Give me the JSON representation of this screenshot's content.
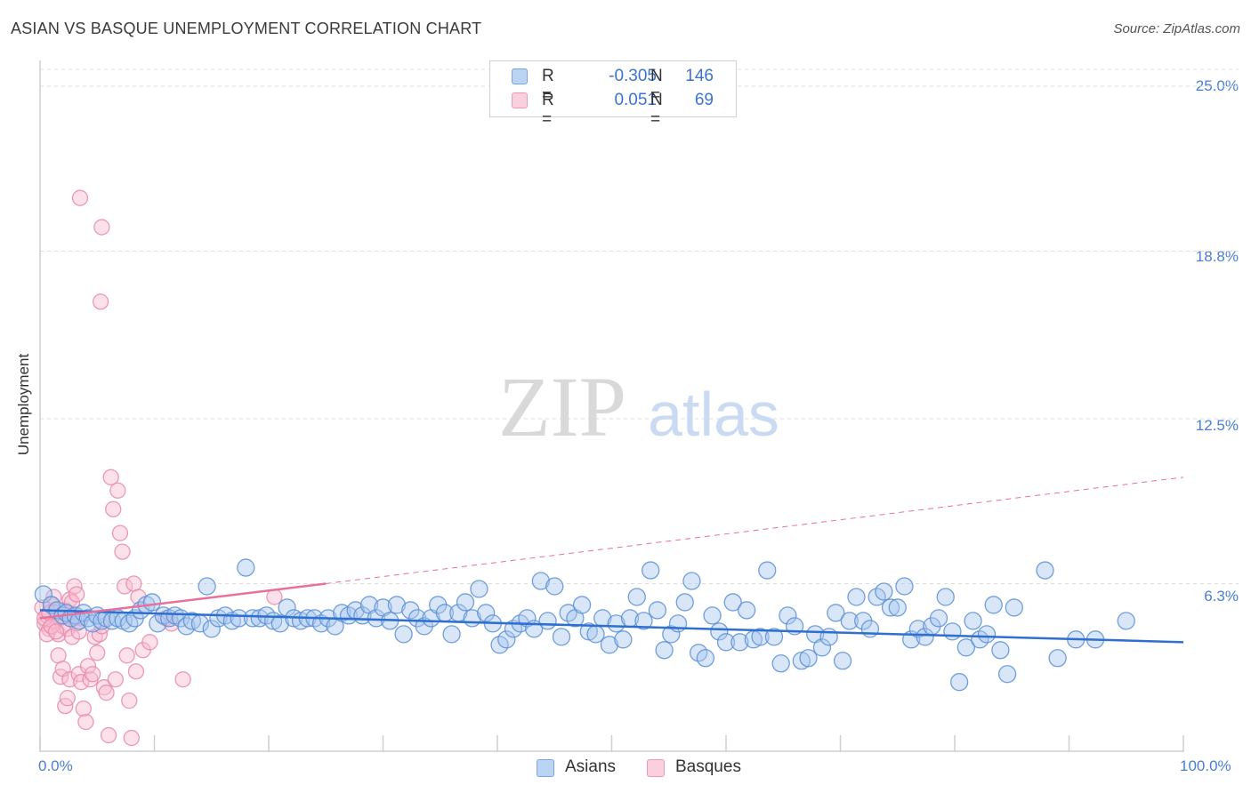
{
  "title": "ASIAN VS BASQUE UNEMPLOYMENT CORRELATION CHART",
  "source": "Source: ZipAtlas.com",
  "watermark": {
    "zip": "ZIP",
    "atlas": "atlas"
  },
  "legend": [
    {
      "name": "Asians",
      "r_label": "R =",
      "r_value": "-0.305",
      "n_label": "N =",
      "n_value": "146",
      "fill": "#a8c8f0",
      "stroke": "#5b8fd6"
    },
    {
      "name": "Basques",
      "r_label": "R =",
      "r_value": "0.051",
      "n_label": "N =",
      "n_value": "69",
      "fill": "#f8bcd0",
      "stroke": "#e888aa"
    }
  ],
  "chart_data": {
    "type": "scatter",
    "title": "ASIAN VS BASQUE UNEMPLOYMENT CORRELATION CHART",
    "xlabel": "",
    "ylabel": "Unemployment",
    "xlim": [
      0,
      100
    ],
    "ylim": [
      0,
      25.8
    ],
    "x_tick_labels": [
      "0.0%",
      "100.0%"
    ],
    "y_ticks": [
      6.3,
      12.5,
      18.8,
      25.0
    ],
    "y_tick_labels": [
      "6.3%",
      "12.5%",
      "18.8%",
      "25.0%"
    ],
    "grid": true,
    "series": [
      {
        "name": "Asians",
        "color": "#5b8fd6",
        "trend": {
          "x": [
            0,
            100
          ],
          "y": [
            5.3,
            4.1
          ],
          "style": "solid",
          "color": "#2f6fd0"
        },
        "points": [
          [
            0.3,
            5.9
          ],
          [
            1.0,
            5.5
          ],
          [
            1.5,
            5.3
          ],
          [
            2.0,
            5.1
          ],
          [
            2.3,
            5.2
          ],
          [
            2.7,
            5.0
          ],
          [
            3.1,
            5.1
          ],
          [
            3.4,
            4.9
          ],
          [
            3.8,
            5.2
          ],
          [
            4.2,
            5.0
          ],
          [
            4.6,
            4.8
          ],
          [
            5.0,
            5.1
          ],
          [
            5.4,
            4.9
          ],
          [
            5.8,
            5.0
          ],
          [
            6.3,
            4.9
          ],
          [
            6.8,
            5.0
          ],
          [
            7.3,
            4.9
          ],
          [
            7.8,
            4.8
          ],
          [
            8.3,
            5.0
          ],
          [
            8.8,
            5.3
          ],
          [
            9.3,
            5.5
          ],
          [
            9.8,
            5.6
          ],
          [
            10.3,
            4.8
          ],
          [
            10.8,
            5.1
          ],
          [
            11.3,
            5.0
          ],
          [
            11.8,
            5.1
          ],
          [
            12.3,
            5.0
          ],
          [
            12.8,
            4.7
          ],
          [
            13.3,
            4.9
          ],
          [
            14.0,
            4.8
          ],
          [
            14.6,
            6.2
          ],
          [
            15.0,
            4.6
          ],
          [
            15.6,
            5.0
          ],
          [
            16.2,
            5.1
          ],
          [
            16.8,
            4.9
          ],
          [
            17.4,
            5.0
          ],
          [
            18.0,
            6.9
          ],
          [
            18.6,
            5.0
          ],
          [
            19.2,
            5.0
          ],
          [
            19.8,
            5.1
          ],
          [
            20.4,
            4.9
          ],
          [
            21.0,
            4.8
          ],
          [
            21.6,
            5.4
          ],
          [
            22.2,
            5.0
          ],
          [
            22.8,
            4.9
          ],
          [
            23.4,
            5.0
          ],
          [
            24.0,
            5.0
          ],
          [
            24.6,
            4.8
          ],
          [
            25.2,
            5.0
          ],
          [
            25.8,
            4.7
          ],
          [
            26.4,
            5.2
          ],
          [
            27.0,
            5.1
          ],
          [
            27.6,
            5.3
          ],
          [
            28.2,
            5.1
          ],
          [
            28.8,
            5.5
          ],
          [
            29.4,
            5.0
          ],
          [
            30.0,
            5.4
          ],
          [
            30.6,
            4.9
          ],
          [
            31.2,
            5.5
          ],
          [
            31.8,
            4.4
          ],
          [
            32.4,
            5.3
          ],
          [
            33.0,
            5.0
          ],
          [
            33.6,
            4.7
          ],
          [
            34.2,
            5.0
          ],
          [
            34.8,
            5.5
          ],
          [
            35.4,
            5.2
          ],
          [
            36.0,
            4.4
          ],
          [
            36.6,
            5.2
          ],
          [
            37.2,
            5.6
          ],
          [
            37.8,
            5.0
          ],
          [
            38.4,
            6.1
          ],
          [
            39.0,
            5.2
          ],
          [
            39.6,
            4.8
          ],
          [
            40.2,
            4.0
          ],
          [
            40.8,
            4.2
          ],
          [
            41.4,
            4.6
          ],
          [
            42.0,
            4.8
          ],
          [
            42.6,
            5.0
          ],
          [
            43.2,
            4.6
          ],
          [
            43.8,
            6.4
          ],
          [
            44.4,
            4.9
          ],
          [
            45.0,
            6.2
          ],
          [
            45.6,
            4.3
          ],
          [
            46.2,
            5.2
          ],
          [
            46.8,
            5.0
          ],
          [
            47.4,
            5.5
          ],
          [
            48.0,
            4.5
          ],
          [
            48.6,
            4.4
          ],
          [
            49.2,
            5.0
          ],
          [
            49.8,
            4.0
          ],
          [
            50.4,
            4.8
          ],
          [
            51.0,
            4.2
          ],
          [
            51.6,
            5.0
          ],
          [
            52.2,
            5.8
          ],
          [
            52.8,
            4.9
          ],
          [
            53.4,
            6.8
          ],
          [
            54.0,
            5.3
          ],
          [
            54.6,
            3.8
          ],
          [
            55.2,
            4.4
          ],
          [
            55.8,
            4.8
          ],
          [
            56.4,
            5.6
          ],
          [
            57.0,
            6.4
          ],
          [
            57.6,
            3.7
          ],
          [
            58.2,
            3.5
          ],
          [
            58.8,
            5.1
          ],
          [
            59.4,
            4.5
          ],
          [
            60.0,
            4.1
          ],
          [
            60.6,
            5.6
          ],
          [
            61.2,
            4.1
          ],
          [
            61.8,
            5.3
          ],
          [
            62.4,
            4.2
          ],
          [
            63.0,
            4.3
          ],
          [
            63.6,
            6.8
          ],
          [
            64.2,
            4.3
          ],
          [
            64.8,
            3.3
          ],
          [
            65.4,
            5.1
          ],
          [
            66.0,
            4.7
          ],
          [
            66.6,
            3.4
          ],
          [
            67.2,
            3.5
          ],
          [
            67.8,
            4.4
          ],
          [
            68.4,
            3.9
          ],
          [
            69.0,
            4.3
          ],
          [
            69.6,
            5.2
          ],
          [
            70.2,
            3.4
          ],
          [
            70.8,
            4.9
          ],
          [
            71.4,
            5.8
          ],
          [
            72.0,
            4.9
          ],
          [
            72.6,
            4.6
          ],
          [
            73.2,
            5.8
          ],
          [
            73.8,
            6.0
          ],
          [
            74.4,
            5.4
          ],
          [
            75.0,
            5.4
          ],
          [
            75.6,
            6.2
          ],
          [
            76.2,
            4.2
          ],
          [
            76.8,
            4.6
          ],
          [
            77.4,
            4.3
          ],
          [
            78.0,
            4.7
          ],
          [
            78.6,
            5.0
          ],
          [
            79.2,
            5.8
          ],
          [
            79.8,
            4.5
          ],
          [
            80.4,
            2.6
          ],
          [
            81.0,
            3.9
          ],
          [
            81.6,
            4.9
          ],
          [
            82.2,
            4.2
          ],
          [
            82.8,
            4.4
          ],
          [
            83.4,
            5.5
          ],
          [
            84.0,
            3.8
          ],
          [
            84.6,
            2.9
          ],
          [
            85.2,
            5.4
          ],
          [
            87.9,
            6.8
          ],
          [
            89.0,
            3.5
          ],
          [
            90.6,
            4.2
          ],
          [
            92.3,
            4.2
          ],
          [
            95.0,
            4.9
          ]
        ]
      },
      {
        "name": "Basques",
        "color": "#e888aa",
        "trend": {
          "x": [
            0,
            25
          ],
          "y": [
            5.0,
            6.3
          ],
          "style": "solid",
          "extension_x": [
            25,
            100
          ],
          "extension_y": [
            6.3,
            10.3
          ],
          "color": "#e8709a"
        },
        "points": [
          [
            0.2,
            5.4
          ],
          [
            0.4,
            4.8
          ],
          [
            0.6,
            5.1
          ],
          [
            0.8,
            4.6
          ],
          [
            1.0,
            5.5
          ],
          [
            1.2,
            4.9
          ],
          [
            1.4,
            5.2
          ],
          [
            1.6,
            4.4
          ],
          [
            1.8,
            5.0
          ],
          [
            2.0,
            4.7
          ],
          [
            2.2,
            5.3
          ],
          [
            2.4,
            4.6
          ],
          [
            2.6,
            5.7
          ],
          [
            2.8,
            4.3
          ],
          [
            3.0,
            5.1
          ],
          [
            3.2,
            4.8
          ],
          [
            3.4,
            4.5
          ],
          [
            3.6,
            5.0
          ],
          [
            0.4,
            5.0
          ],
          [
            0.6,
            4.4
          ],
          [
            0.8,
            5.2
          ],
          [
            1.0,
            4.7
          ],
          [
            1.2,
            5.8
          ],
          [
            1.4,
            4.5
          ],
          [
            1.6,
            3.6
          ],
          [
            1.8,
            2.8
          ],
          [
            2.0,
            3.1
          ],
          [
            2.2,
            1.7
          ],
          [
            2.4,
            2.0
          ],
          [
            2.6,
            2.7
          ],
          [
            2.8,
            5.6
          ],
          [
            3.0,
            6.2
          ],
          [
            3.2,
            5.9
          ],
          [
            3.4,
            2.9
          ],
          [
            3.6,
            2.6
          ],
          [
            3.8,
            1.6
          ],
          [
            4.0,
            1.1
          ],
          [
            4.2,
            3.2
          ],
          [
            4.4,
            2.7
          ],
          [
            4.6,
            2.9
          ],
          [
            4.8,
            4.3
          ],
          [
            5.0,
            3.7
          ],
          [
            5.2,
            4.4
          ],
          [
            5.4,
            4.7
          ],
          [
            5.6,
            2.4
          ],
          [
            5.8,
            2.2
          ],
          [
            6.0,
            0.6
          ],
          [
            6.2,
            10.3
          ],
          [
            6.4,
            9.1
          ],
          [
            6.6,
            2.7
          ],
          [
            6.8,
            9.8
          ],
          [
            7.0,
            8.2
          ],
          [
            7.2,
            7.5
          ],
          [
            7.4,
            6.2
          ],
          [
            7.6,
            3.6
          ],
          [
            7.8,
            1.9
          ],
          [
            8.0,
            0.5
          ],
          [
            8.2,
            6.3
          ],
          [
            8.4,
            3.0
          ],
          [
            8.6,
            5.8
          ],
          [
            3.5,
            20.8
          ],
          [
            5.3,
            16.9
          ],
          [
            5.4,
            19.7
          ],
          [
            9.0,
            3.8
          ],
          [
            9.6,
            4.1
          ],
          [
            11.0,
            5.0
          ],
          [
            11.5,
            4.8
          ],
          [
            12.5,
            2.7
          ],
          [
            20.5,
            5.8
          ]
        ]
      }
    ]
  }
}
